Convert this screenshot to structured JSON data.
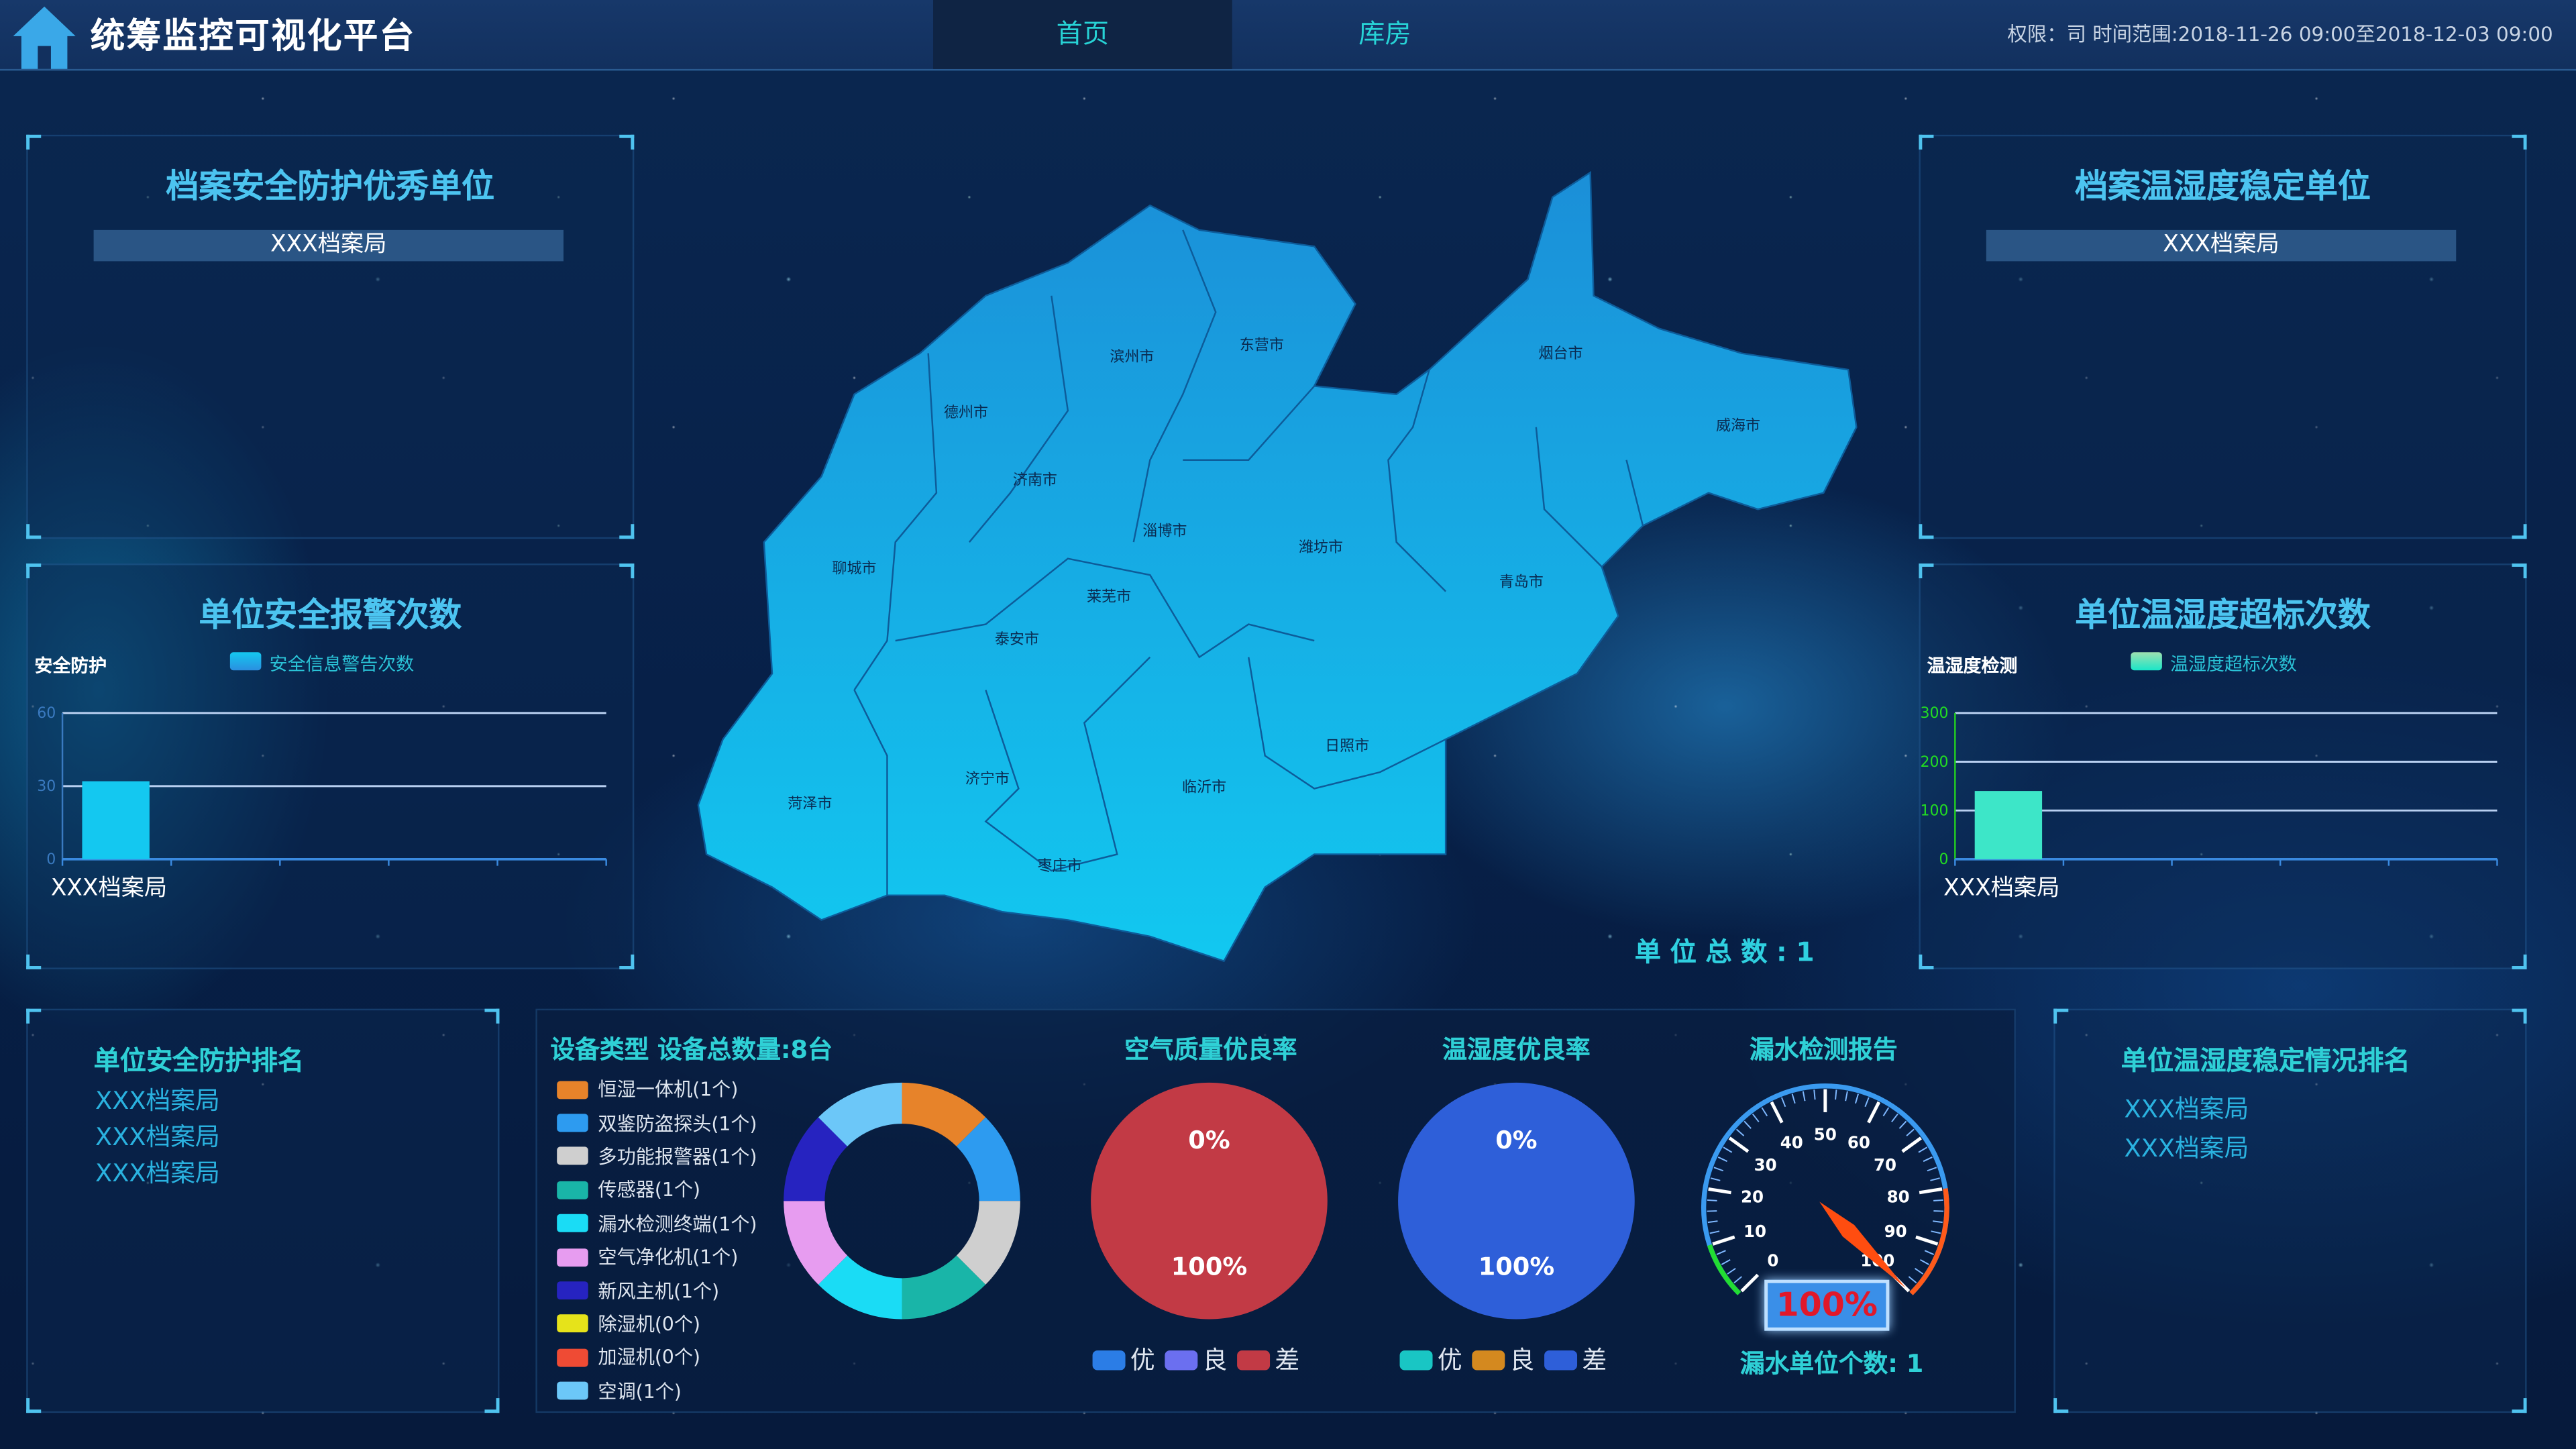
{
  "header": {
    "title": "统筹监控可视化平台",
    "tabs": [
      {
        "label": "首页",
        "active": true
      },
      {
        "label": "库房",
        "active": false
      }
    ],
    "info": "权限：司  时间范围:2018-11-26 09:00至2018-12-03 09:00"
  },
  "top_left": {
    "title": "档案安全防护优秀单位",
    "unit": "XXX档案局"
  },
  "top_right": {
    "title": "档案温湿度稳定单位",
    "unit": "XXX档案局"
  },
  "map": {
    "cities": [
      "滨州市",
      "东营市",
      "烟台市",
      "威海市",
      "德州市",
      "济南市",
      "淄博市",
      "潍坊市",
      "青岛市",
      "聊城市",
      "莱芜市",
      "泰安市",
      "日照市",
      "济宁市",
      "临沂市",
      "菏泽市",
      "枣庄市"
    ],
    "total_label": "单 位 总 数 : 1",
    "colors": {
      "fill_top": "#1b8fd8",
      "fill_bottom": "#12c8f0"
    }
  },
  "chart_data": [
    {
      "type": "bar",
      "title": "单位安全报警次数",
      "ylabel": "安全防护",
      "legend": "安全信息警告次数",
      "categories": [
        "XXX档案局"
      ],
      "values": [
        32
      ],
      "yticks": [
        "0",
        "30",
        "60"
      ],
      "ylim": [
        0,
        60
      ],
      "color": "#14c8f0"
    },
    {
      "type": "bar",
      "title": "单位温湿度超标次数",
      "ylabel": "温湿度检测",
      "legend": "温湿度超标次数",
      "categories": [
        "XXX档案局"
      ],
      "values": [
        140
      ],
      "yticks": [
        "0",
        "100",
        "200",
        "300"
      ],
      "ylim": [
        0,
        300
      ],
      "color": "#3de6c8"
    },
    {
      "type": "pie",
      "title": "设备类型 设备总数量:8台",
      "donut": true,
      "slices": [
        {
          "label": "恒湿一体机(1个)",
          "value": 1,
          "color": "#e7832a"
        },
        {
          "label": "双鉴防盗探头(1个)",
          "value": 1,
          "color": "#2d9bf0"
        },
        {
          "label": "多功能报警器(1个)",
          "value": 1,
          "color": "#cfcfcf"
        },
        {
          "label": "传感器(1个)",
          "value": 1,
          "color": "#19b5a8"
        },
        {
          "label": "漏水检测终端(1个)",
          "value": 1,
          "color": "#1adcf5"
        },
        {
          "label": "空气净化机(1个)",
          "value": 1,
          "color": "#e79cf0"
        },
        {
          "label": "新风主机(1个)",
          "value": 1,
          "color": "#2623c0"
        },
        {
          "label": "除湿机(0个)",
          "value": 0,
          "color": "#e6e31a"
        },
        {
          "label": "加湿机(0个)",
          "value": 0,
          "color": "#ef4b34"
        },
        {
          "label": "空调(1个)",
          "value": 1,
          "color": "#6cc7f8"
        }
      ]
    },
    {
      "type": "pie",
      "title": "空气质量优良率",
      "top_label": "0%",
      "bottom_label": "100%",
      "slices": [
        {
          "label": "优",
          "value": 0,
          "color": "#2b7de6"
        },
        {
          "label": "良",
          "value": 0,
          "color": "#6b6ff0"
        },
        {
          "label": "差",
          "value": 100,
          "color": "#c23a45"
        }
      ]
    },
    {
      "type": "pie",
      "title": "温湿度优良率",
      "top_label": "0%",
      "bottom_label": "100%",
      "slices": [
        {
          "label": "优",
          "value": 0,
          "color": "#19c6c4"
        },
        {
          "label": "良",
          "value": 0,
          "color": "#d4891f"
        },
        {
          "label": "差",
          "value": 100,
          "color": "#2e5fd9"
        }
      ]
    },
    {
      "type": "gauge",
      "title": "漏水检测报告",
      "value": 100,
      "min": 0,
      "max": 100,
      "ticks": [
        "0",
        "10",
        "20",
        "30",
        "40",
        "50",
        "60",
        "70",
        "80",
        "90",
        "100"
      ],
      "display": "100%",
      "footer": "漏水单位个数: 1"
    }
  ],
  "bottom_left": {
    "title": "单位安全防护排名",
    "items": [
      "XXX档案局",
      "XXX档案局",
      "XXX档案局"
    ]
  },
  "bottom_right": {
    "title": "单位温湿度稳定情况排名",
    "items": [
      "XXX档案局",
      "XXX档案局"
    ]
  }
}
